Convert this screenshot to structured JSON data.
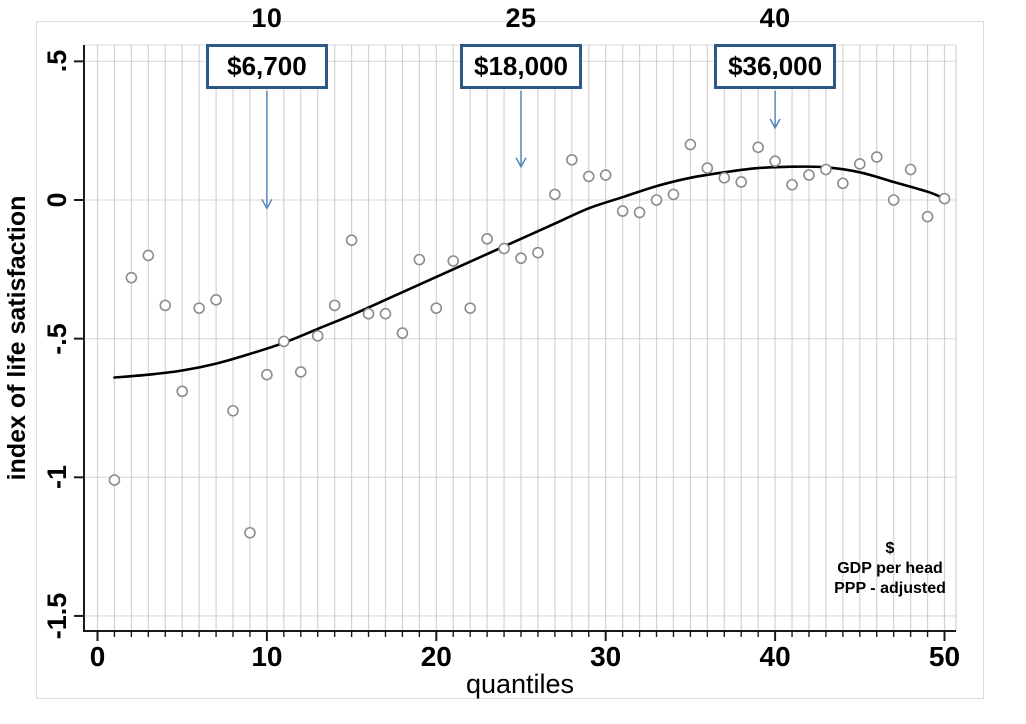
{
  "chart_data": {
    "type": "scatter",
    "title": "",
    "xlabel": "quantiles",
    "ylabel": "index of life satisfaction",
    "xlim": [
      -0.8,
      50.7
    ],
    "ylim": [
      -1.61,
      0.56
    ],
    "grid": "light vertical gridline at every quantile; light horizontal gridlines at labeled y ticks",
    "legend_position": "none",
    "x_ticks": [
      {
        "label": "0",
        "value": 0
      },
      {
        "label": "10",
        "value": 10
      },
      {
        "label": "20",
        "value": 20
      },
      {
        "label": "30",
        "value": 30
      },
      {
        "label": "40",
        "value": 40
      },
      {
        "label": "50",
        "value": 50
      }
    ],
    "y_ticks": [
      {
        "label": ".5",
        "value": 0.5
      },
      {
        "label": "0",
        "value": 0
      },
      {
        "label": "-.5",
        "value": -0.5
      },
      {
        "label": "-1",
        "value": -1
      },
      {
        "label": "-1.5",
        "value": -1.5
      }
    ],
    "points": {
      "x": [
        1,
        2,
        3,
        4,
        5,
        6,
        7,
        8,
        9,
        10,
        11,
        12,
        13,
        14,
        15,
        16,
        17,
        18,
        19,
        20,
        21,
        22,
        23,
        24,
        25,
        26,
        27,
        28,
        29,
        30,
        31,
        32,
        33,
        34,
        35,
        36,
        37,
        38,
        39,
        40,
        41,
        42,
        43,
        44,
        45,
        46,
        47,
        48,
        49,
        50
      ],
      "y": [
        -1.01,
        -0.28,
        -0.2,
        -0.38,
        -0.69,
        -0.39,
        -0.36,
        -0.76,
        -1.2,
        -0.63,
        -0.51,
        -0.62,
        -0.49,
        -0.38,
        -0.145,
        -0.41,
        -0.41,
        -0.48,
        -0.215,
        -0.39,
        -0.22,
        -0.39,
        -0.14,
        -0.175,
        -0.21,
        -0.19,
        0.02,
        0.145,
        0.085,
        0.09,
        -0.04,
        -0.045,
        0.0,
        0.02,
        0.2,
        0.115,
        0.08,
        0.065,
        0.19,
        0.14,
        0.055,
        0.09,
        0.11,
        0.06,
        0.13,
        0.155,
        0.0,
        0.11,
        -0.06,
        0.005
      ]
    },
    "trend_curve": {
      "description": "smooth cubic fit through scatter",
      "samples": [
        [
          1,
          -0.64
        ],
        [
          3,
          -0.63
        ],
        [
          5,
          -0.615
        ],
        [
          7,
          -0.59
        ],
        [
          9,
          -0.555
        ],
        [
          11,
          -0.515
        ],
        [
          13,
          -0.465
        ],
        [
          15,
          -0.415
        ],
        [
          17,
          -0.36
        ],
        [
          19,
          -0.305
        ],
        [
          21,
          -0.25
        ],
        [
          23,
          -0.195
        ],
        [
          25,
          -0.14
        ],
        [
          27,
          -0.085
        ],
        [
          29,
          -0.03
        ],
        [
          31,
          0.01
        ],
        [
          33,
          0.05
        ],
        [
          35,
          0.08
        ],
        [
          37,
          0.1
        ],
        [
          39,
          0.115
        ],
        [
          41,
          0.12
        ],
        [
          43,
          0.118
        ],
        [
          45,
          0.1
        ],
        [
          47,
          0.065
        ],
        [
          49,
          0.03
        ],
        [
          50,
          0.005
        ]
      ]
    },
    "annotations": [
      {
        "axis_label": "10",
        "box_label": "$6,700",
        "quantile": 10,
        "arrow_tip_value": -0.03
      },
      {
        "axis_label": "25",
        "box_label": "$18,000",
        "quantile": 25,
        "arrow_tip_value": 0.12
      },
      {
        "axis_label": "40",
        "box_label": "$36,000",
        "quantile": 40,
        "arrow_tip_value": 0.26
      }
    ],
    "note_lines": [
      "$",
      "GDP per head",
      "PPP - adjusted"
    ],
    "colors": {
      "annotation_box_border": "#2d5986",
      "arrow": "#4f81bd",
      "point_outline": "#8c8c8c",
      "fit_line": "#000000",
      "gridline": "#d2d2d2",
      "gridline_horizontal": "#e0e0e0",
      "axis": "#1a1a1a"
    }
  }
}
